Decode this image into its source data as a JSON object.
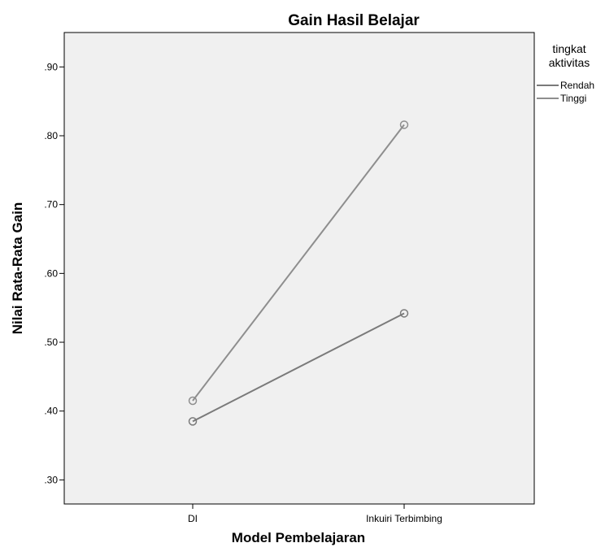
{
  "chart_data": {
    "type": "line",
    "title": "Gain Hasil Belajar",
    "xlabel": "Model Pembelajaran",
    "ylabel": "Nilai Rata-Rata  Gain",
    "categories": [
      "DI",
      "Inkuiri Terbimbing"
    ],
    "ylim": [
      0.265,
      0.95
    ],
    "yticks": [
      ".30",
      ".40",
      ".50",
      ".60",
      ".70",
      ".80",
      ".90"
    ],
    "ytick_values": [
      0.3,
      0.4,
      0.5,
      0.6,
      0.7,
      0.8,
      0.9
    ],
    "grid": false,
    "plot_background": "#f0f0f0",
    "legend": {
      "title_lines": [
        "tingkat",
        "aktivitas"
      ],
      "position": "right"
    },
    "series": [
      {
        "name": "Rendah",
        "values": [
          0.385,
          0.542
        ],
        "color": "#7a7a7a"
      },
      {
        "name": "Tinggi",
        "values": [
          0.415,
          0.816
        ],
        "color": "#8e8e8e"
      }
    ]
  }
}
